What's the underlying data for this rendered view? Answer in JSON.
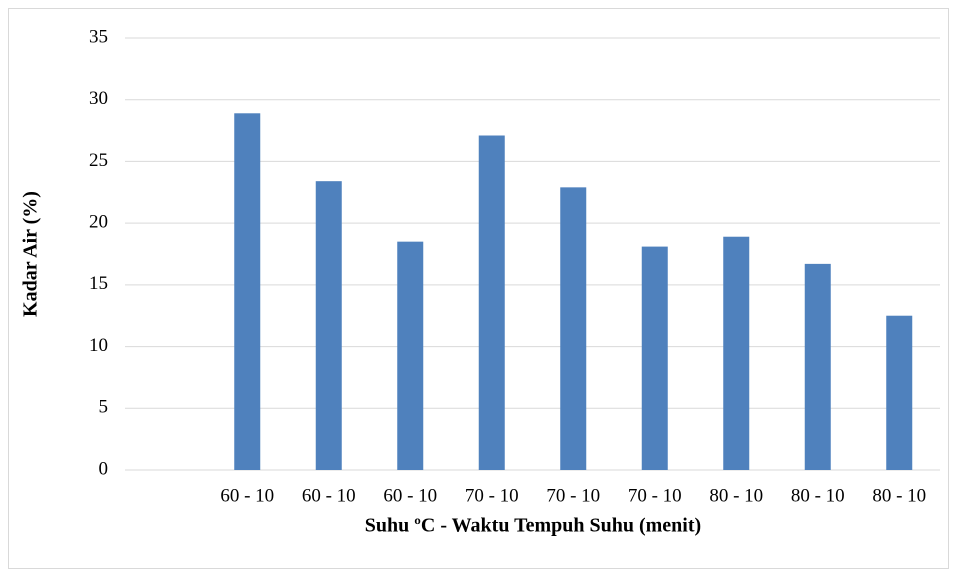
{
  "chart_data": {
    "type": "bar",
    "x_label": "Suhu ºC - Waktu Tempuh Suhu (menit)",
    "y_label": "Kadar Air (%)",
    "categories": [
      null,
      "60 - 10",
      "60 - 10",
      "60 - 10",
      "70 - 10",
      "70 - 10",
      "70 - 10",
      "80 - 10",
      "80 - 10",
      "80 - 10"
    ],
    "values": [
      null,
      28.9,
      23.4,
      18.5,
      27.1,
      22.9,
      18.1,
      18.9,
      16.7,
      12.5
    ],
    "color": "#4f81bd",
    "ylim": [
      0,
      35
    ],
    "yticks": [
      0,
      5,
      10,
      15,
      20,
      25,
      30,
      35
    ],
    "grid": true
  }
}
